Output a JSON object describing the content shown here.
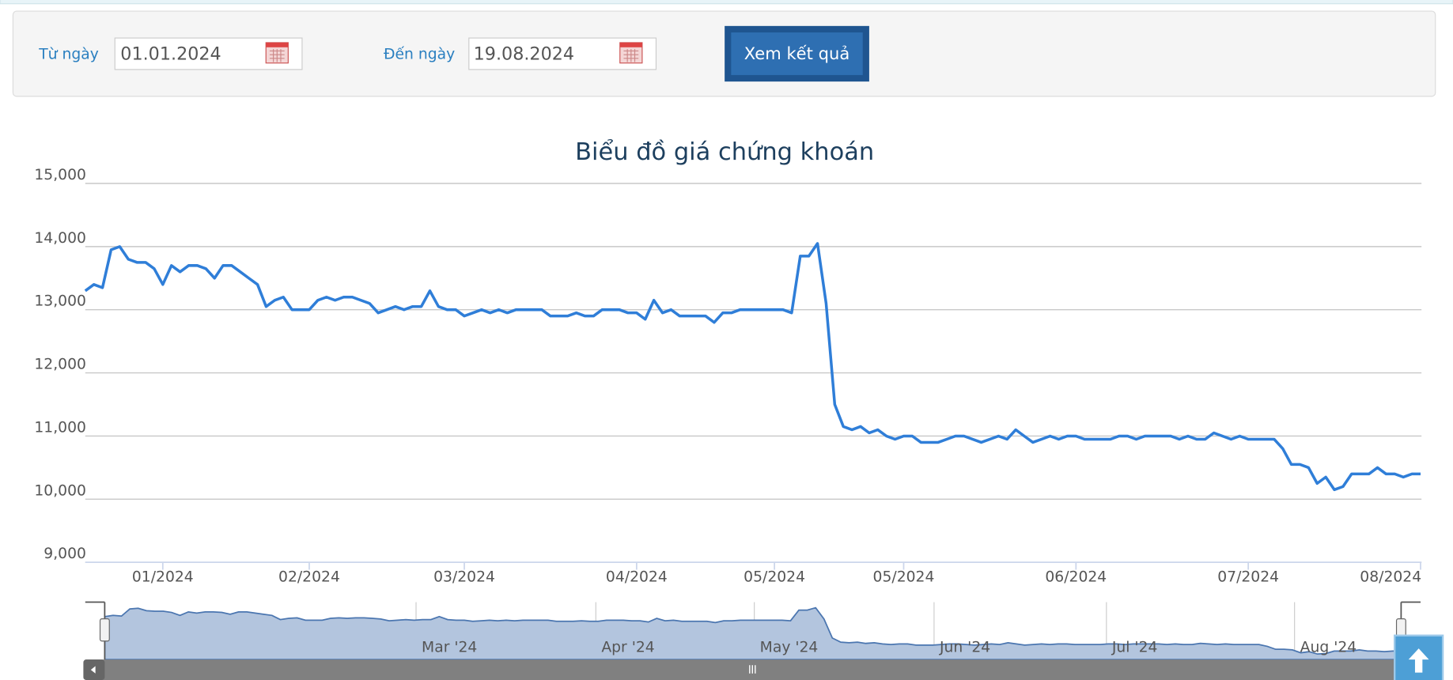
{
  "form": {
    "from_label": "Từ ngày",
    "from_value": "01.01.2024",
    "to_label": "Đến ngày",
    "to_value": "19.08.2024",
    "button": "Xem kết quả"
  },
  "chart_data": {
    "type": "line",
    "title": "Biểu đồ giá chứng khoán",
    "categories": [
      null,
      null,
      null,
      null,
      null,
      null,
      null,
      null,
      null,
      "01/2024",
      null,
      null,
      null,
      null,
      null,
      null,
      null,
      null,
      null,
      null,
      null,
      null,
      null,
      null,
      null,
      null,
      "02/2024",
      null,
      null,
      null,
      null,
      null,
      null,
      null,
      null,
      null,
      null,
      null,
      null,
      null,
      null,
      null,
      null,
      null,
      "03/2024",
      null,
      null,
      null,
      null,
      null,
      null,
      null,
      null,
      null,
      null,
      null,
      null,
      null,
      null,
      null,
      null,
      null,
      null,
      null,
      "04/2024",
      null,
      null,
      null,
      null,
      null,
      null,
      null,
      null,
      null,
      null,
      null,
      null,
      null,
      null,
      null,
      "05/2024",
      null,
      null,
      null,
      null,
      null,
      null,
      null,
      null,
      null,
      null,
      null,
      null,
      null,
      null,
      "05/2024",
      null,
      null,
      null,
      null,
      null,
      null,
      null,
      null,
      null,
      null,
      null,
      null,
      null,
      null,
      null,
      null,
      null,
      null,
      null,
      "06/2024",
      null,
      null,
      null,
      null,
      null,
      null,
      null,
      null,
      null,
      null,
      null,
      null,
      null,
      null,
      null,
      null,
      null,
      null,
      null,
      "07/2024",
      null,
      null,
      null,
      null,
      null,
      null,
      null,
      null,
      null,
      null,
      null,
      null,
      null,
      null,
      null,
      null,
      null,
      null,
      null,
      "08/2024"
    ],
    "values": [
      13300,
      13400,
      13350,
      13950,
      14000,
      13800,
      13750,
      13750,
      13650,
      13400,
      13700,
      13600,
      13700,
      13700,
      13650,
      13500,
      13700,
      13700,
      13600,
      13500,
      13400,
      13050,
      13150,
      13200,
      13000,
      13000,
      13000,
      13150,
      13200,
      13150,
      13200,
      13200,
      13150,
      13100,
      12950,
      13000,
      13050,
      13000,
      13050,
      13050,
      13300,
      13050,
      13000,
      13000,
      12900,
      12950,
      13000,
      12950,
      13000,
      12950,
      13000,
      13000,
      13000,
      13000,
      12900,
      12900,
      12900,
      12950,
      12900,
      12900,
      13000,
      13000,
      13000,
      12950,
      12950,
      12850,
      13150,
      12950,
      13000,
      12900,
      12900,
      12900,
      12900,
      12800,
      12950,
      12950,
      13000,
      13000,
      13000,
      13000,
      13000,
      13000,
      12950,
      13850,
      13850,
      14050,
      13100,
      11500,
      11150,
      11100,
      11150,
      11050,
      11100,
      11000,
      10950,
      11000,
      11000,
      10900,
      10900,
      10900,
      10950,
      11000,
      11000,
      10950,
      10900,
      10950,
      11000,
      10950,
      11100,
      11000,
      10900,
      10950,
      11000,
      10950,
      11000,
      11000,
      10950,
      10950,
      10950,
      10950,
      11000,
      11000,
      10950,
      11000,
      11000,
      11000,
      11000,
      10950,
      11000,
      10950,
      10950,
      11050,
      11000,
      10950,
      11000,
      10950,
      10950,
      10950,
      10950,
      10800,
      10550,
      10550,
      10500,
      10250,
      10350,
      10150,
      10200,
      10400,
      10400,
      10400,
      10500,
      10400,
      10400,
      10350,
      10400,
      10400
    ],
    "color": "#2f7ed8",
    "ylim": [
      9000,
      15000
    ],
    "yticks": [
      {
        "value": 9000,
        "label": "9,000"
      },
      {
        "value": 10000,
        "label": "10,000"
      },
      {
        "value": 11000,
        "label": "11,000"
      },
      {
        "value": 12000,
        "label": "12,000"
      },
      {
        "value": 13000,
        "label": "13,000"
      },
      {
        "value": 14000,
        "label": "14,000"
      },
      {
        "value": 15000,
        "label": "15,000"
      }
    ],
    "grid": true,
    "navigator_labels": [
      "Mar '24",
      "Apr '24",
      "May '24",
      "Jun '24",
      "Jul '24",
      "Aug '24"
    ]
  }
}
